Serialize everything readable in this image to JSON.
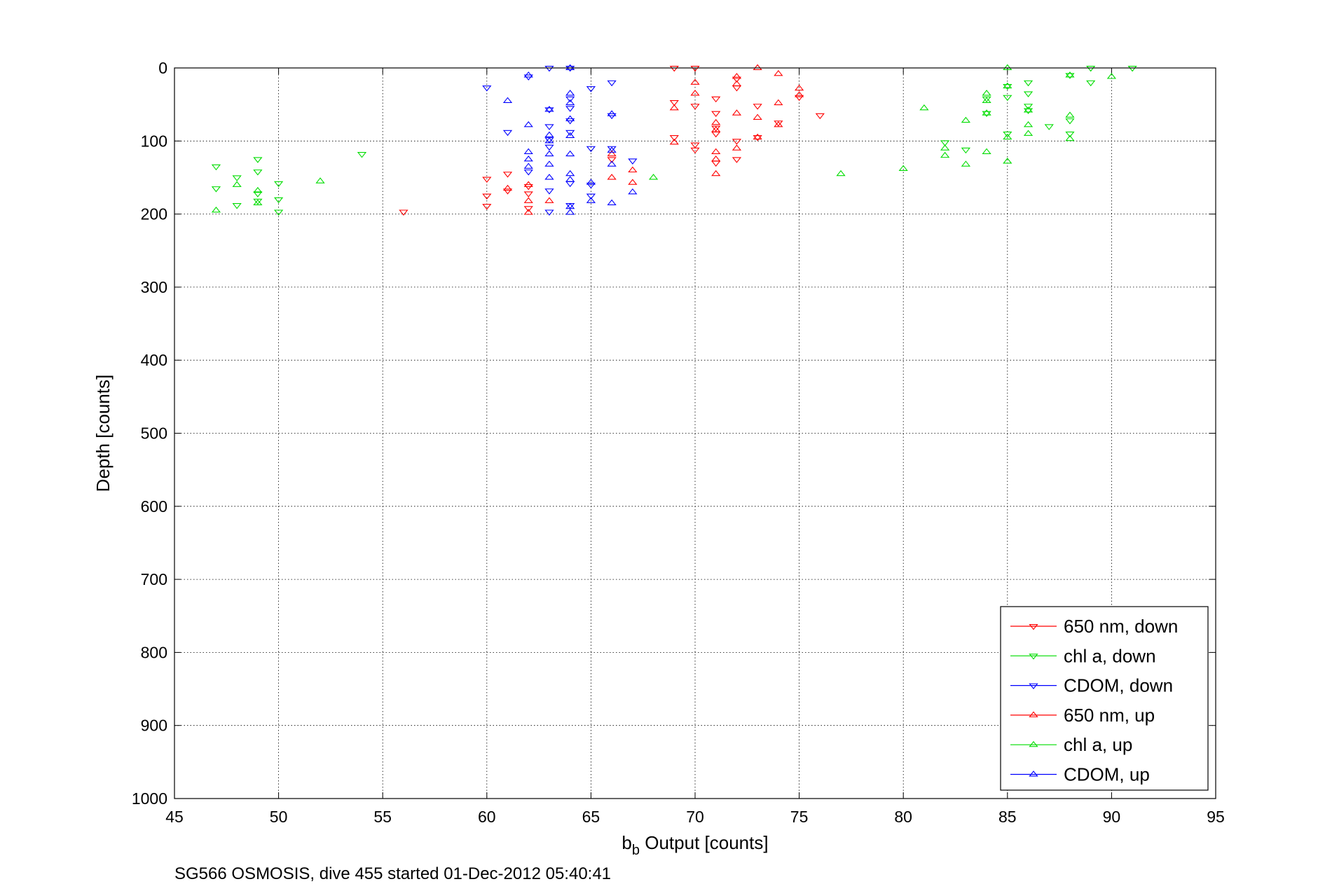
{
  "chart_data": {
    "type": "scatter",
    "caption": "SG566 OSMOSIS, dive 455 started 01-Dec-2012 05:40:41",
    "xlabel_main": "b",
    "xlabel_sub": "b",
    "xlabel_rest": " Output [counts]",
    "ylabel": "Depth [counts]",
    "xlim": [
      45,
      95
    ],
    "ylim": [
      0,
      1000
    ],
    "y_reversed": true,
    "x_ticks": [
      45,
      50,
      55,
      60,
      65,
      70,
      75,
      80,
      85,
      90,
      95
    ],
    "y_ticks": [
      0,
      100,
      200,
      300,
      400,
      500,
      600,
      700,
      800,
      900,
      1000
    ],
    "grid": true,
    "legend_position": "bottom-right",
    "series": [
      {
        "name": "650 nm, down",
        "color": "#ff0000",
        "marker": "triangle-down",
        "points": [
          [
            56,
            197
          ],
          [
            60,
            152
          ],
          [
            60,
            175
          ],
          [
            60,
            189
          ],
          [
            61,
            145
          ],
          [
            61,
            168
          ],
          [
            62,
            162
          ],
          [
            62,
            172
          ],
          [
            62,
            192
          ],
          [
            66,
            125
          ],
          [
            69,
            0
          ],
          [
            69,
            47
          ],
          [
            69,
            95
          ],
          [
            70,
            0
          ],
          [
            70,
            52
          ],
          [
            70,
            105
          ],
          [
            70,
            112
          ],
          [
            71,
            42
          ],
          [
            71,
            62
          ],
          [
            71,
            82
          ],
          [
            71,
            90
          ],
          [
            71,
            130
          ],
          [
            72,
            15
          ],
          [
            72,
            27
          ],
          [
            72,
            100
          ],
          [
            72,
            125
          ],
          [
            73,
            52
          ],
          [
            73,
            95
          ],
          [
            74,
            75
          ],
          [
            75,
            40
          ],
          [
            76,
            65
          ]
        ]
      },
      {
        "name": "chl a, down",
        "color": "#00dd00",
        "marker": "triangle-down",
        "points": [
          [
            47,
            135
          ],
          [
            47,
            165
          ],
          [
            48,
            150
          ],
          [
            48,
            188
          ],
          [
            49,
            125
          ],
          [
            49,
            142
          ],
          [
            49,
            172
          ],
          [
            49,
            182
          ],
          [
            50,
            158
          ],
          [
            50,
            180
          ],
          [
            50,
            197
          ],
          [
            54,
            118
          ],
          [
            82,
            102
          ],
          [
            83,
            112
          ],
          [
            84,
            62
          ],
          [
            84,
            42
          ],
          [
            85,
            25
          ],
          [
            85,
            40
          ],
          [
            85,
            90
          ],
          [
            86,
            20
          ],
          [
            86,
            35
          ],
          [
            86,
            52
          ],
          [
            86,
            58
          ],
          [
            87,
            80
          ],
          [
            88,
            10
          ],
          [
            88,
            72
          ],
          [
            88,
            90
          ],
          [
            89,
            0
          ],
          [
            89,
            20
          ],
          [
            91,
            0
          ]
        ]
      },
      {
        "name": "CDOM, down",
        "color": "#0000ff",
        "marker": "triangle-down",
        "points": [
          [
            60,
            27
          ],
          [
            61,
            88
          ],
          [
            62,
            12
          ],
          [
            62,
            142
          ],
          [
            63,
            0
          ],
          [
            63,
            57
          ],
          [
            63,
            80
          ],
          [
            63,
            98
          ],
          [
            63,
            108
          ],
          [
            63,
            168
          ],
          [
            63,
            197
          ],
          [
            64,
            0
          ],
          [
            64,
            42
          ],
          [
            64,
            55
          ],
          [
            64,
            72
          ],
          [
            64,
            88
          ],
          [
            64,
            158
          ],
          [
            64,
            188
          ],
          [
            65,
            28
          ],
          [
            65,
            110
          ],
          [
            65,
            160
          ],
          [
            65,
            175
          ],
          [
            66,
            20
          ],
          [
            66,
            65
          ],
          [
            66,
            110
          ],
          [
            67,
            127
          ]
        ]
      },
      {
        "name": "650 nm, up",
        "color": "#ff0000",
        "marker": "triangle-up",
        "points": [
          [
            61,
            165
          ],
          [
            62,
            160
          ],
          [
            62,
            182
          ],
          [
            62,
            198
          ],
          [
            63,
            182
          ],
          [
            66,
            118
          ],
          [
            66,
            150
          ],
          [
            67,
            140
          ],
          [
            67,
            157
          ],
          [
            69,
            55
          ],
          [
            69,
            102
          ],
          [
            70,
            20
          ],
          [
            70,
            35
          ],
          [
            71,
            75
          ],
          [
            71,
            85
          ],
          [
            71,
            115
          ],
          [
            71,
            125
          ],
          [
            71,
            145
          ],
          [
            72,
            12
          ],
          [
            72,
            22
          ],
          [
            72,
            62
          ],
          [
            72,
            110
          ],
          [
            73,
            0
          ],
          [
            73,
            68
          ],
          [
            73,
            95
          ],
          [
            74,
            8
          ],
          [
            74,
            48
          ],
          [
            74,
            78
          ],
          [
            75,
            28
          ],
          [
            75,
            37
          ]
        ]
      },
      {
        "name": "chl a, up",
        "color": "#00dd00",
        "marker": "triangle-up",
        "points": [
          [
            47,
            195
          ],
          [
            48,
            160
          ],
          [
            49,
            168
          ],
          [
            49,
            185
          ],
          [
            52,
            155
          ],
          [
            68,
            150
          ],
          [
            77,
            145
          ],
          [
            80,
            138
          ],
          [
            81,
            55
          ],
          [
            82,
            110
          ],
          [
            82,
            120
          ],
          [
            83,
            72
          ],
          [
            83,
            132
          ],
          [
            84,
            35
          ],
          [
            84,
            45
          ],
          [
            84,
            62
          ],
          [
            84,
            115
          ],
          [
            85,
            0
          ],
          [
            85,
            25
          ],
          [
            85,
            95
          ],
          [
            85,
            128
          ],
          [
            86,
            78
          ],
          [
            86,
            90
          ],
          [
            86,
            58
          ],
          [
            88,
            10
          ],
          [
            88,
            65
          ],
          [
            88,
            97
          ],
          [
            90,
            12
          ]
        ]
      },
      {
        "name": "CDOM, up",
        "color": "#0000ff",
        "marker": "triangle-up",
        "points": [
          [
            61,
            45
          ],
          [
            62,
            10
          ],
          [
            62,
            78
          ],
          [
            62,
            115
          ],
          [
            62,
            125
          ],
          [
            62,
            135
          ],
          [
            63,
            57
          ],
          [
            63,
            92
          ],
          [
            63,
            100
          ],
          [
            63,
            118
          ],
          [
            63,
            132
          ],
          [
            63,
            150
          ],
          [
            64,
            0
          ],
          [
            64,
            35
          ],
          [
            64,
            48
          ],
          [
            64,
            70
          ],
          [
            64,
            93
          ],
          [
            64,
            118
          ],
          [
            64,
            145
          ],
          [
            64,
            153
          ],
          [
            64,
            190
          ],
          [
            64,
            198
          ],
          [
            65,
            157
          ],
          [
            65,
            182
          ],
          [
            66,
            63
          ],
          [
            66,
            113
          ],
          [
            66,
            132
          ],
          [
            66,
            185
          ],
          [
            67,
            170
          ]
        ]
      }
    ]
  }
}
